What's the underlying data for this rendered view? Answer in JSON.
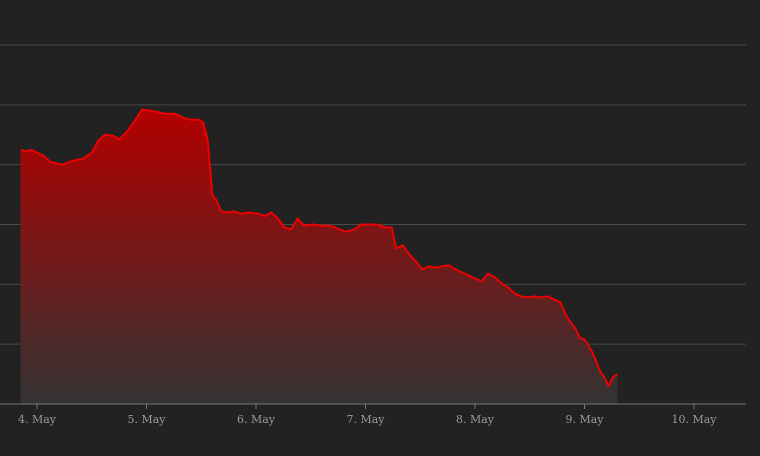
{
  "chart_data": {
    "type": "area",
    "title": "",
    "xlabel": "",
    "ylabel": "",
    "x_tick_labels": [
      "4. May",
      "5. May",
      "6. May",
      "7. May",
      "8. May",
      "9. May",
      "10. May"
    ],
    "x_range_days": [
      3.85,
      10.5
    ],
    "y_range": [
      0,
      6
    ],
    "y_tick_labels_visible": false,
    "grid": true,
    "legend": "none",
    "colors": {
      "background": "#222222",
      "line": "#ee0000",
      "fill_top": "#b30000",
      "fill_bottom": "#333333",
      "grid": "#4a4a4a",
      "axis": "#777777",
      "tick_text": "#9a9a9a"
    },
    "series": [
      {
        "points": [
          [
            3.85,
            4.25
          ],
          [
            3.9,
            4.22
          ],
          [
            3.95,
            4.25
          ],
          [
            4.0,
            4.2
          ],
          [
            4.06,
            4.15
          ],
          [
            4.12,
            4.05
          ],
          [
            4.18,
            4.02
          ],
          [
            4.24,
            4.0
          ],
          [
            4.3,
            4.05
          ],
          [
            4.36,
            4.08
          ],
          [
            4.42,
            4.1
          ],
          [
            4.5,
            4.2
          ],
          [
            4.56,
            4.4
          ],
          [
            4.62,
            4.5
          ],
          [
            4.7,
            4.48
          ],
          [
            4.75,
            4.42
          ],
          [
            4.82,
            4.55
          ],
          [
            4.88,
            4.7
          ],
          [
            4.96,
            4.92
          ],
          [
            5.04,
            4.9
          ],
          [
            5.1,
            4.88
          ],
          [
            5.18,
            4.85
          ],
          [
            5.26,
            4.85
          ],
          [
            5.34,
            4.78
          ],
          [
            5.4,
            4.75
          ],
          [
            5.48,
            4.75
          ],
          [
            5.52,
            4.7
          ],
          [
            5.56,
            4.4
          ],
          [
            5.6,
            3.5
          ],
          [
            5.64,
            3.4
          ],
          [
            5.68,
            3.22
          ],
          [
            5.74,
            3.2
          ],
          [
            5.8,
            3.22
          ],
          [
            5.86,
            3.18
          ],
          [
            5.94,
            3.2
          ],
          [
            6.02,
            3.18
          ],
          [
            6.08,
            3.14
          ],
          [
            6.14,
            3.2
          ],
          [
            6.2,
            3.1
          ],
          [
            6.26,
            2.95
          ],
          [
            6.32,
            2.92
          ],
          [
            6.38,
            3.1
          ],
          [
            6.44,
            2.98
          ],
          [
            6.52,
            3.0
          ],
          [
            6.6,
            2.98
          ],
          [
            6.68,
            2.98
          ],
          [
            6.76,
            2.92
          ],
          [
            6.82,
            2.88
          ],
          [
            6.9,
            2.92
          ],
          [
            6.96,
            3.0
          ],
          [
            7.04,
            3.0
          ],
          [
            7.1,
            3.0
          ],
          [
            7.18,
            2.95
          ],
          [
            7.24,
            2.95
          ],
          [
            7.28,
            2.6
          ],
          [
            7.34,
            2.65
          ],
          [
            7.4,
            2.5
          ],
          [
            7.46,
            2.38
          ],
          [
            7.52,
            2.25
          ],
          [
            7.58,
            2.3
          ],
          [
            7.64,
            2.28
          ],
          [
            7.7,
            2.3
          ],
          [
            7.76,
            2.32
          ],
          [
            7.82,
            2.25
          ],
          [
            7.88,
            2.2
          ],
          [
            7.94,
            2.15
          ],
          [
            8.0,
            2.1
          ],
          [
            8.06,
            2.05
          ],
          [
            8.12,
            2.18
          ],
          [
            8.18,
            2.12
          ],
          [
            8.24,
            2.02
          ],
          [
            8.3,
            1.95
          ],
          [
            8.36,
            1.85
          ],
          [
            8.42,
            1.8
          ],
          [
            8.48,
            1.78
          ],
          [
            8.54,
            1.8
          ],
          [
            8.6,
            1.78
          ],
          [
            8.66,
            1.8
          ],
          [
            8.72,
            1.75
          ],
          [
            8.78,
            1.7
          ],
          [
            8.84,
            1.45
          ],
          [
            8.88,
            1.35
          ],
          [
            8.92,
            1.25
          ],
          [
            8.96,
            1.1
          ],
          [
            9.0,
            1.08
          ],
          [
            9.06,
            0.9
          ],
          [
            9.1,
            0.75
          ],
          [
            9.14,
            0.55
          ],
          [
            9.18,
            0.45
          ],
          [
            9.22,
            0.3
          ],
          [
            9.26,
            0.45
          ],
          [
            9.3,
            0.5
          ]
        ]
      }
    ]
  }
}
